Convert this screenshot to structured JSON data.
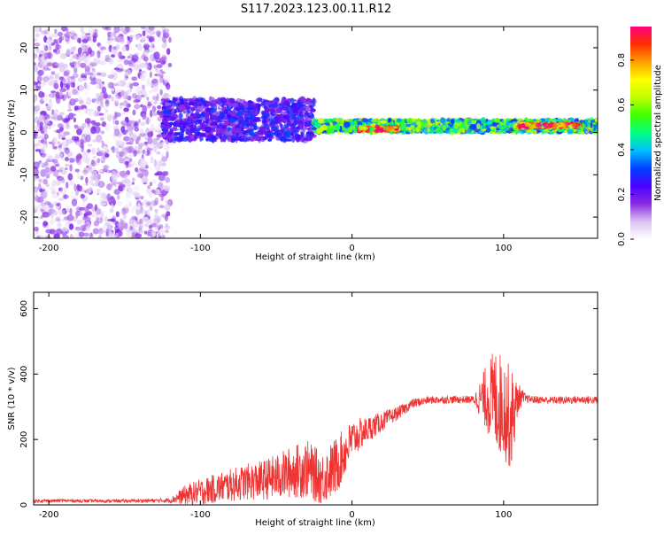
{
  "title": "S117.2023.123.00.11.R12",
  "chart_data": [
    {
      "type": "heatmap",
      "xlabel": "Height of straight line (km)",
      "ylabel": "Frequency (Hz)",
      "xlim": [
        -210,
        162
      ],
      "ylim": [
        -25,
        25
      ],
      "xticks": [
        -200,
        -100,
        0,
        100
      ],
      "yticks": [
        -20,
        -10,
        0,
        10,
        20
      ],
      "colorbar": {
        "label": "Normalized spectral amplitude",
        "range": [
          0,
          0.95
        ],
        "ticks": [
          "0.0",
          "0.2",
          "0.4",
          "0.6",
          "0.8"
        ],
        "colors": [
          "#ffffff",
          "#d9c2f2",
          "#8a2be2",
          "#4b00ff",
          "#0040ff",
          "#00c0ff",
          "#00ff80",
          "#40ff00",
          "#c0ff00",
          "#ffff00",
          "#ffa000",
          "#ff3000",
          "#ff0080"
        ]
      },
      "regions": [
        {
          "x_range": [
            -210,
            -120
          ],
          "freq_range": [
            -25,
            25
          ],
          "amplitude": 0.05,
          "description_level": "scattered noise"
        },
        {
          "x_range": [
            -125,
            -25
          ],
          "freq_center": 3,
          "freq_halfwidth": 7,
          "amplitude": 0.25
        },
        {
          "x_range": [
            -25,
            162
          ],
          "freq_center": 1.5,
          "freq_halfwidth": 2,
          "amplitude": 0.55
        },
        {
          "x_range": [
            5,
            30
          ],
          "freq_center": 0.8,
          "freq_halfwidth": 0.5,
          "amplitude": 0.9
        },
        {
          "x_range": [
            110,
            150
          ],
          "freq_center": 1.6,
          "freq_halfwidth": 0.5,
          "amplitude": 0.9
        }
      ]
    },
    {
      "type": "line",
      "xlabel": "Height of straight line (km)",
      "ylabel": "SNR (10 * v/v)",
      "xlim": [
        -210,
        162
      ],
      "ylim": [
        0,
        650
      ],
      "xticks": [
        -200,
        -100,
        0,
        100
      ],
      "yticks": [
        0,
        200,
        400,
        600
      ],
      "color": "#ee3333",
      "series": [
        {
          "x": [
            -210,
            -190,
            -170,
            -150,
            -130,
            -120,
            -110,
            -100,
            -90,
            -80,
            -70,
            -60,
            -50,
            -40,
            -30,
            -20,
            -10,
            0,
            10,
            20,
            30,
            40,
            50,
            60,
            70,
            80,
            85,
            90,
            95,
            100,
            105,
            110,
            115,
            120,
            130,
            140,
            150,
            162
          ],
          "values": [
            12,
            13,
            12,
            12,
            13,
            14,
            30,
            40,
            50,
            60,
            70,
            75,
            85,
            100,
            110,
            80,
            120,
            200,
            230,
            255,
            280,
            310,
            320,
            322,
            322,
            322,
            325,
            330,
            320,
            300,
            260,
            330,
            325,
            322,
            320,
            320,
            322,
            320
          ],
          "spread": [
            5,
            5,
            5,
            5,
            6,
            8,
            30,
            40,
            45,
            50,
            55,
            60,
            70,
            80,
            90,
            80,
            90,
            60,
            40,
            30,
            20,
            15,
            12,
            12,
            12,
            12,
            60,
            120,
            160,
            160,
            160,
            40,
            12,
            12,
            12,
            12,
            12,
            12
          ]
        }
      ]
    }
  ]
}
